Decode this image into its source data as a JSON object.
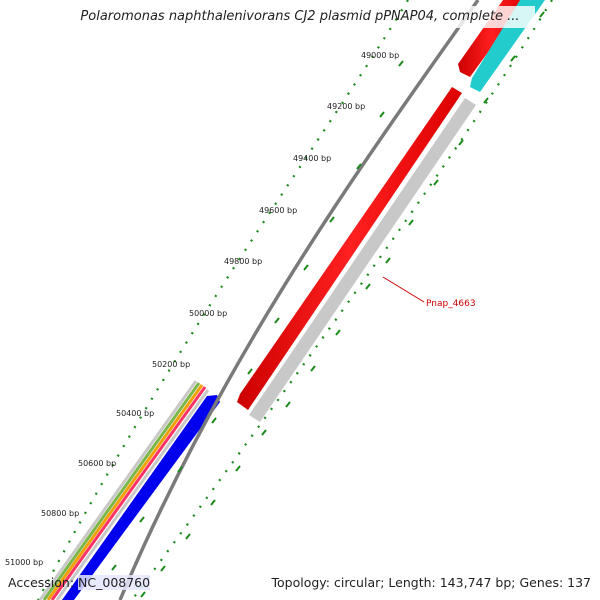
{
  "title": "Polaromonas naphthalenivorans CJ2 plasmid pPNAP04, complete ...",
  "footer": {
    "accession_label": "Accession: ",
    "accession_value": "NC_008760",
    "topology": "Topology: circular; Length: 143,747 bp; Genes: 137"
  },
  "ticks": [
    {
      "label": "49000 bp"
    },
    {
      "label": "49200 bp"
    },
    {
      "label": "49400 bp"
    },
    {
      "label": "49600 bp"
    },
    {
      "label": "49800 bp"
    },
    {
      "label": "50000 bp"
    },
    {
      "label": "50200 bp"
    },
    {
      "label": "50400 bp"
    },
    {
      "label": "50600 bp"
    },
    {
      "label": "50800 bp"
    },
    {
      "label": "51000 bp"
    }
  ],
  "gene_label": "Pnap_4663",
  "colors": {
    "tick_green": "#1a8a1a",
    "backbone_gray": "#7a7a7a",
    "gene_red": "#ff0000",
    "gene_cyan": "#22cccc",
    "gene_blue": "#0000ee",
    "gene_gray": "#c8c8c8",
    "gene_label": "#cc0000"
  }
}
